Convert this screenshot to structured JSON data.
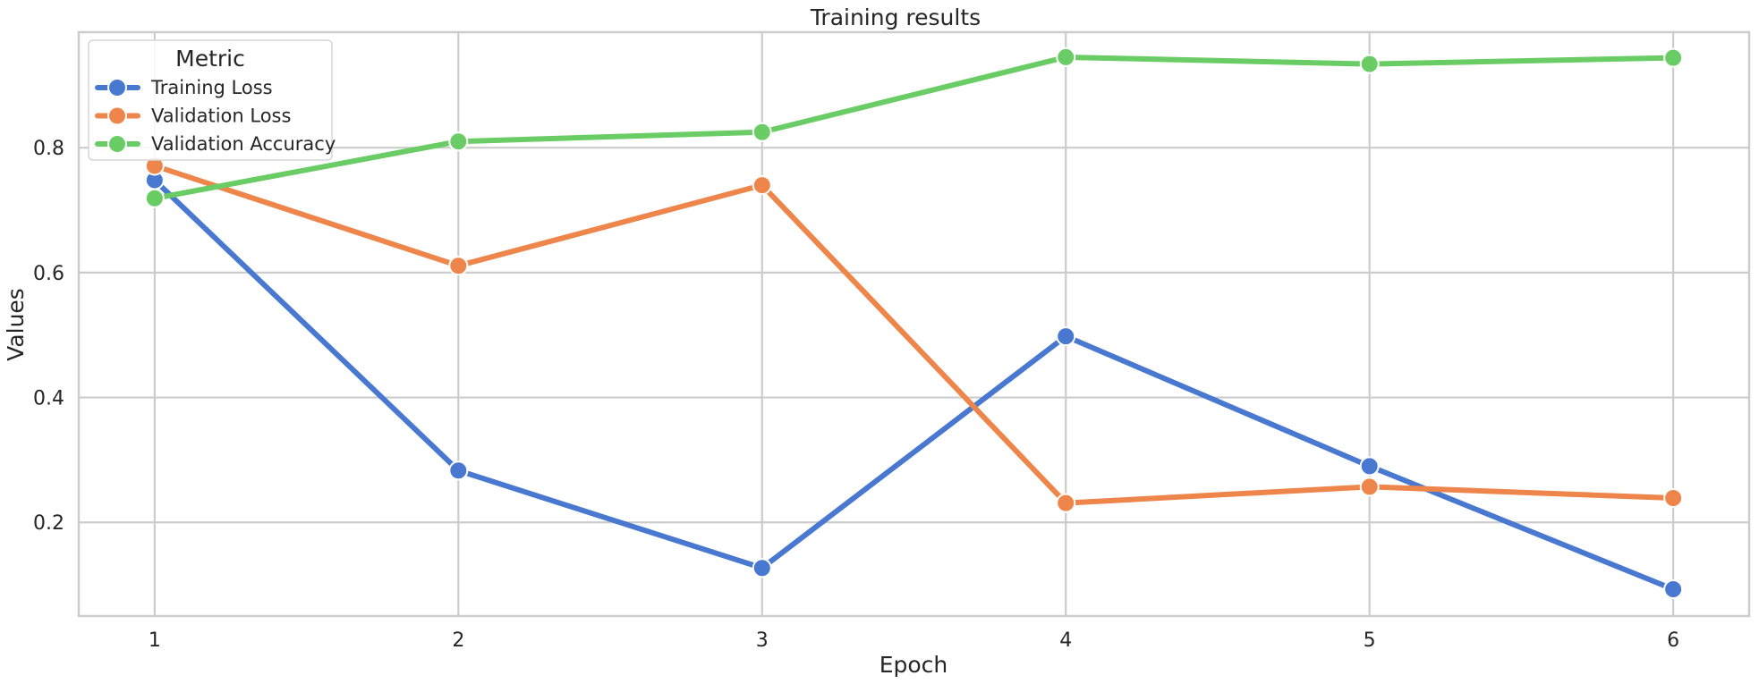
{
  "chart_data": {
    "type": "line",
    "title": "Training results",
    "xlabel": "Epoch",
    "ylabel": "Values",
    "x": [
      1,
      2,
      3,
      4,
      5,
      6
    ],
    "xticks": [
      "1",
      "2",
      "3",
      "4",
      "5",
      "6"
    ],
    "yticks": [
      "0.2",
      "0.4",
      "0.6",
      "0.8"
    ],
    "xlim": [
      0.75,
      6.25
    ],
    "ylim": [
      0.05,
      0.985
    ],
    "grid": true,
    "legend": {
      "title": "Metric",
      "placement": "top-left"
    },
    "series": [
      {
        "name": "Training Loss",
        "color": "#4878d0",
        "values": [
          0.748,
          0.283,
          0.127,
          0.498,
          0.29,
          0.093
        ]
      },
      {
        "name": "Validation Loss",
        "color": "#ee854a",
        "values": [
          0.771,
          0.611,
          0.74,
          0.231,
          0.257,
          0.239
        ]
      },
      {
        "name": "Validation Accuracy",
        "color": "#6acc64",
        "values": [
          0.719,
          0.81,
          0.825,
          0.945,
          0.934,
          0.944
        ]
      }
    ]
  }
}
